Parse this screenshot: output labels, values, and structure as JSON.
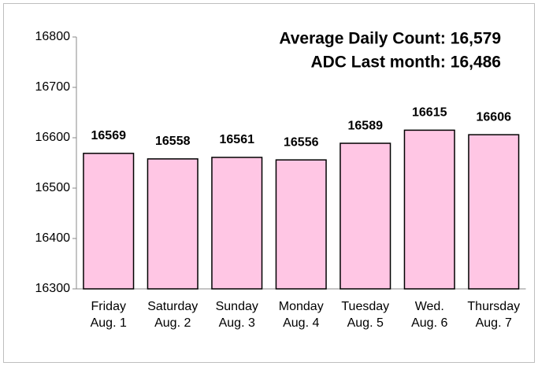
{
  "chart_data": {
    "type": "bar",
    "annotations": [
      "Average Daily Count: 16,579",
      "ADC Last month: 16,486"
    ],
    "categories": [
      [
        "Friday",
        "Aug. 1"
      ],
      [
        "Saturday",
        "Aug. 2"
      ],
      [
        "Sunday",
        "Aug. 3"
      ],
      [
        "Monday",
        "Aug. 4"
      ],
      [
        "Tuesday",
        "Aug. 5"
      ],
      [
        "Wed.",
        "Aug. 6"
      ],
      [
        "Thursday",
        "Aug. 7"
      ]
    ],
    "values": [
      16569,
      16558,
      16561,
      16556,
      16589,
      16615,
      16606
    ],
    "color": "#ffc6e4",
    "ylim": [
      16300,
      16800
    ],
    "yticks": [
      16300,
      16400,
      16500,
      16600,
      16700,
      16800
    ],
    "grid": false
  }
}
